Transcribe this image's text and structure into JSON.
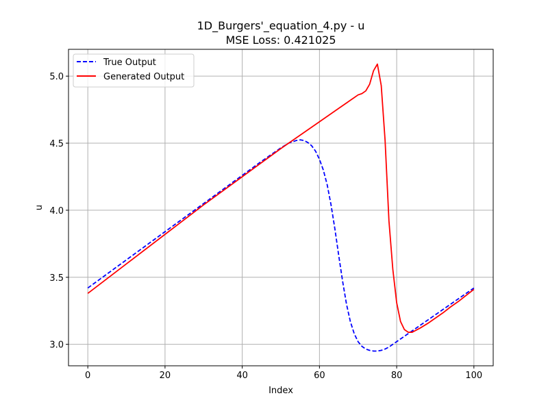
{
  "chart_data": {
    "type": "line",
    "title": "1D_Burgers'_equation_4.py - u",
    "subtitle": "MSE Loss: 0.421025",
    "xlabel": "Index",
    "ylabel": "u",
    "xlim": [
      -5,
      105
    ],
    "ylim": [
      2.84,
      5.2
    ],
    "xticks": [
      0,
      20,
      40,
      60,
      80,
      100
    ],
    "yticks": [
      3.0,
      3.5,
      4.0,
      4.5,
      5.0
    ],
    "xtick_labels": [
      "0",
      "20",
      "40",
      "60",
      "80",
      "100"
    ],
    "ytick_labels": [
      "3.0",
      "3.5",
      "4.0",
      "4.5",
      "5.0"
    ],
    "grid": true,
    "legend_position": "upper-left",
    "series": [
      {
        "name": "True Output",
        "color": "#0000ff",
        "style": "dashed",
        "x": [
          0,
          10,
          20,
          30,
          40,
          45,
          50,
          52,
          54,
          55,
          56,
          57,
          58,
          59,
          60,
          61,
          62,
          63,
          64,
          65,
          66,
          67,
          68,
          69,
          70,
          71,
          72,
          73,
          74,
          75,
          76,
          77,
          78,
          80,
          82,
          84,
          86,
          88,
          90,
          92,
          94,
          96,
          98,
          100
        ],
        "values": [
          3.42,
          3.63,
          3.84,
          4.05,
          4.26,
          4.365,
          4.465,
          4.5,
          4.52,
          4.525,
          4.52,
          4.505,
          4.48,
          4.44,
          4.38,
          4.3,
          4.19,
          4.04,
          3.86,
          3.66,
          3.47,
          3.3,
          3.17,
          3.08,
          3.02,
          2.985,
          2.965,
          2.955,
          2.95,
          2.95,
          2.955,
          2.965,
          2.98,
          3.02,
          3.06,
          3.1,
          3.14,
          3.18,
          3.22,
          3.26,
          3.3,
          3.34,
          3.38,
          3.42
        ]
      },
      {
        "name": "Generated Output",
        "color": "#ff0000",
        "style": "solid",
        "x": [
          0,
          10,
          20,
          30,
          40,
          50,
          60,
          65,
          68,
          69,
          70,
          71,
          72,
          73,
          74,
          75,
          76,
          77,
          78,
          79,
          80,
          81,
          82,
          83,
          84,
          86,
          88,
          90,
          92,
          94,
          96,
          98,
          100
        ],
        "values": [
          3.38,
          3.6,
          3.82,
          4.04,
          4.25,
          4.46,
          4.66,
          4.76,
          4.82,
          4.84,
          4.86,
          4.87,
          4.89,
          4.94,
          5.04,
          5.09,
          4.93,
          4.52,
          3.92,
          3.56,
          3.31,
          3.17,
          3.11,
          3.09,
          3.09,
          3.12,
          3.155,
          3.195,
          3.235,
          3.28,
          3.32,
          3.365,
          3.41
        ]
      }
    ]
  }
}
